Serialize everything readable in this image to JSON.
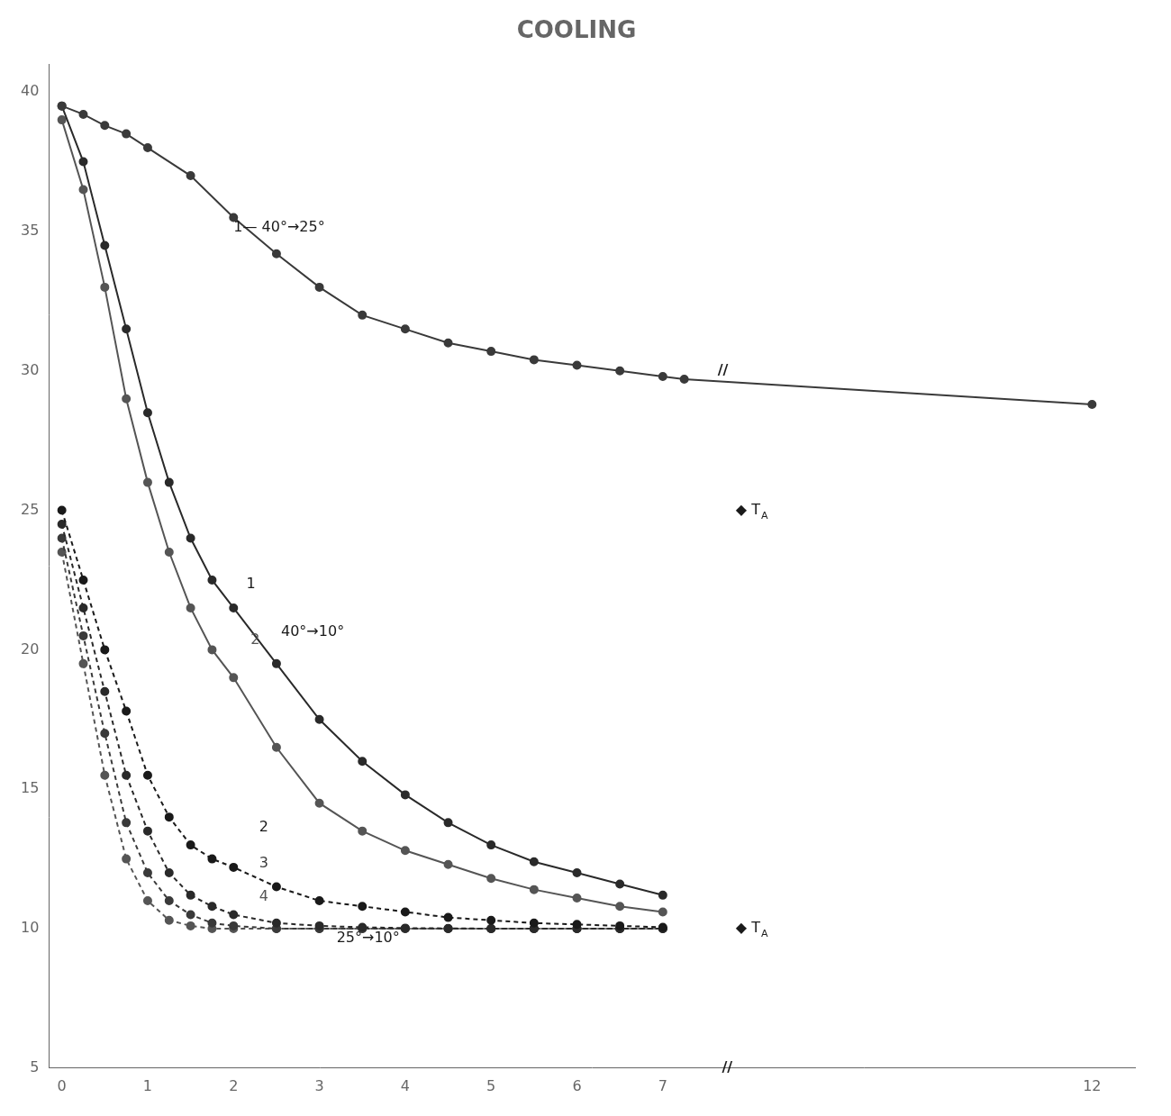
{
  "chart_data": {
    "type": "line",
    "title": "COOLING",
    "xlim": [
      -0.15,
      12.5
    ],
    "xticks": [
      0,
      1,
      2,
      3,
      4,
      5,
      6,
      7,
      12
    ],
    "ylim": [
      5,
      41
    ],
    "yticks": [
      5,
      10,
      15,
      20,
      25,
      30,
      35,
      40
    ],
    "grid": false,
    "series": [
      {
        "color": "#3a3a3a",
        "line_style": "solid",
        "marker": "circle",
        "x": [
          0,
          0.25,
          0.5,
          0.75,
          1.0,
          1.5,
          2.0,
          2.5,
          3.0,
          3.5,
          4.0,
          4.5,
          5.0,
          5.5,
          6.0,
          6.5,
          7.0,
          7.25,
          12.0
        ],
        "values": [
          39.5,
          39.2,
          38.8,
          38.5,
          38.0,
          37.0,
          35.5,
          34.2,
          33.0,
          32.0,
          31.5,
          31.0,
          30.7,
          30.4,
          30.2,
          30.0,
          29.8,
          29.7,
          28.8
        ]
      },
      {
        "color": "#2a2a2a",
        "line_style": "solid",
        "marker": "circle",
        "x": [
          0,
          0.25,
          0.5,
          0.75,
          1.0,
          1.25,
          1.5,
          1.75,
          2.0,
          2.5,
          3.0,
          3.5,
          4.0,
          4.5,
          5.0,
          5.5,
          6.0,
          6.5,
          7.0
        ],
        "values": [
          39.5,
          37.5,
          34.5,
          31.5,
          28.5,
          26.0,
          24.0,
          22.5,
          21.5,
          19.5,
          17.5,
          16.0,
          14.8,
          13.8,
          13.0,
          12.4,
          12.0,
          11.6,
          11.2
        ]
      },
      {
        "color": "#555555",
        "line_style": "solid",
        "marker": "circle",
        "x": [
          0,
          0.25,
          0.5,
          0.75,
          1.0,
          1.25,
          1.5,
          1.75,
          2.0,
          2.5,
          3.0,
          3.5,
          4.0,
          4.5,
          5.0,
          5.5,
          6.0,
          6.5,
          7.0
        ],
        "values": [
          39.0,
          36.5,
          33.0,
          29.0,
          26.0,
          23.5,
          21.5,
          20.0,
          19.0,
          16.5,
          14.5,
          13.5,
          12.8,
          12.3,
          11.8,
          11.4,
          11.1,
          10.8,
          10.6
        ]
      },
      {
        "color": "#1a1a1a",
        "line_style": "dashed",
        "marker": "circle",
        "x": [
          0,
          0.25,
          0.5,
          0.75,
          1.0,
          1.25,
          1.5,
          1.75,
          2.0,
          2.5,
          3.0,
          3.5,
          4.0,
          4.5,
          5.0,
          5.5,
          6.0,
          6.5,
          7.0
        ],
        "values": [
          25.0,
          22.5,
          20.0,
          17.8,
          15.5,
          14.0,
          13.0,
          12.5,
          12.2,
          11.5,
          11.0,
          10.8,
          10.6,
          10.4,
          10.3,
          10.2,
          10.15,
          10.1,
          10.05
        ]
      },
      {
        "color": "#2a2a2a",
        "line_style": "dashed",
        "marker": "circle",
        "x": [
          0,
          0.25,
          0.5,
          0.75,
          1.0,
          1.25,
          1.5,
          1.75,
          2.0,
          2.5,
          3.0,
          3.5,
          4.0,
          4.5,
          5.0,
          5.5,
          6.0,
          6.5,
          7.0
        ],
        "values": [
          24.5,
          21.5,
          18.5,
          15.5,
          13.5,
          12.0,
          11.2,
          10.8,
          10.5,
          10.2,
          10.1,
          10.05,
          10.02,
          10.01,
          10.0,
          10.0,
          10.0,
          10.0,
          10.0
        ]
      },
      {
        "color": "#3a3a3a",
        "line_style": "dashed",
        "marker": "circle",
        "x": [
          0,
          0.25,
          0.5,
          0.75,
          1.0,
          1.25,
          1.5,
          1.75,
          2.0,
          2.5,
          3.0,
          3.5,
          4.0,
          4.5,
          5.0,
          5.5,
          6.0,
          6.5,
          7.0
        ],
        "values": [
          24.0,
          20.5,
          17.0,
          13.8,
          12.0,
          11.0,
          10.5,
          10.2,
          10.1,
          10.0,
          10.0,
          10.0,
          10.0,
          10.0,
          10.0,
          10.0,
          10.0,
          10.0,
          10.0
        ]
      },
      {
        "color": "#555555",
        "line_style": "dashed",
        "marker": "circle",
        "x": [
          0,
          0.25,
          0.5,
          0.75,
          1.0,
          1.25,
          1.5,
          1.75,
          2.0,
          2.5,
          3.0,
          3.5,
          4.0,
          4.5,
          5.0,
          5.5,
          6.0,
          6.5,
          7.0
        ],
        "values": [
          23.5,
          19.5,
          15.5,
          12.5,
          11.0,
          10.3,
          10.1,
          10.0,
          10.0,
          10.0,
          10.0,
          10.0,
          10.0,
          10.0,
          10.0,
          10.0,
          10.0,
          10.0,
          10.0
        ]
      }
    ],
    "annotations": [
      {
        "text": "1— 40°→25°",
        "x": 2.0,
        "y": 35.0,
        "color": "#1a1a1a"
      },
      {
        "text": "1",
        "x": 2.15,
        "y": 22.2,
        "color": "#1a1a1a"
      },
      {
        "text": "2",
        "x": 2.2,
        "y": 20.2,
        "color": "#555555"
      },
      {
        "text": " 40°→10°",
        "x": 2.5,
        "y": 20.5,
        "color": "#1a1a1a"
      },
      {
        "text": "2",
        "x": 2.3,
        "y": 13.5,
        "color": "#1a1a1a"
      },
      {
        "text": "3",
        "x": 2.3,
        "y": 12.2,
        "color": "#3a3a3a"
      },
      {
        "text": "4",
        "x": 2.3,
        "y": 11.0,
        "color": "#555555"
      },
      {
        "text": "25°→10°",
        "x": 3.2,
        "y": 9.5,
        "color": "#1a1a1a"
      },
      {
        "text": "◆ T",
        "subscript": "A",
        "x": 7.85,
        "y": 25.0,
        "color": "#1a1a1a"
      },
      {
        "text": "◆ T",
        "subscript": "A",
        "x": 7.85,
        "y": 10.0,
        "color": "#1a1a1a"
      },
      {
        "text": "//",
        "x": 7.7,
        "y": 30.0,
        "color": "#1a1a1a",
        "align": "center"
      },
      {
        "text": "//",
        "x": 7.75,
        "y": 5.0,
        "color": "#1a1a1a",
        "align": "center"
      }
    ]
  }
}
